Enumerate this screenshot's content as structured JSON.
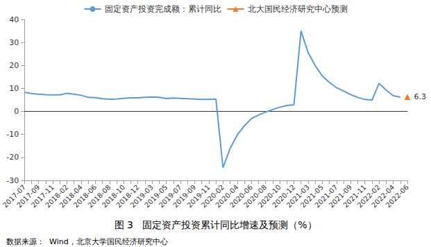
{
  "chart_data": {
    "type": "line",
    "title": "图 3   固定资产投资累计同比增速及预测（%）",
    "source": "数据来源：  Wind，北京大学国民经济研究中心",
    "categories": [
      "2017-07",
      null,
      "2017-09",
      null,
      "2017-11",
      null,
      "2018-02",
      null,
      "2018-04",
      null,
      "2018-06",
      null,
      "2018-08",
      null,
      "2018-10",
      null,
      "2018-12",
      null,
      "2019-03",
      null,
      "2019-05",
      null,
      "2019-07",
      null,
      "2019-09",
      null,
      "2019-11",
      null,
      "2020-02",
      null,
      "2020-04",
      null,
      "2020-06",
      null,
      "2020-08",
      null,
      "2020-10",
      null,
      "2020-12",
      null,
      "2021-03",
      null,
      "2021-05",
      null,
      "2021-07",
      null,
      "2021-09",
      null,
      "2021-11",
      null,
      "2022-02",
      null,
      "2022-04",
      null,
      "2022-06"
    ],
    "series": [
      {
        "name": "固定资产投资完成额：累计同比",
        "color": "#5b9bd5",
        "marker": "none",
        "line_style": "solid",
        "values": [
          8.3,
          7.8,
          7.5,
          7.3,
          7.2,
          7.2,
          7.9,
          7.5,
          7.0,
          6.1,
          6.0,
          5.5,
          5.3,
          5.4,
          5.7,
          5.9,
          5.9,
          6.1,
          6.3,
          6.1,
          5.6,
          5.8,
          5.7,
          5.5,
          5.4,
          5.2,
          5.2,
          5.4,
          -24.5,
          -16.1,
          -10.3,
          -6.3,
          -3.1,
          -1.6,
          -0.3,
          0.8,
          1.8,
          2.6,
          2.9,
          35.0,
          25.6,
          19.9,
          15.4,
          12.6,
          10.3,
          8.9,
          7.3,
          6.1,
          5.2,
          4.9,
          12.2,
          9.3,
          6.8,
          6.2,
          null
        ]
      },
      {
        "name": "北大国民经济研究中心预测",
        "color": "#ed7d31",
        "marker": "triangle",
        "line_style": "solid",
        "data_labels": true,
        "values": [
          null,
          null,
          null,
          null,
          null,
          null,
          null,
          null,
          null,
          null,
          null,
          null,
          null,
          null,
          null,
          null,
          null,
          null,
          null,
          null,
          null,
          null,
          null,
          null,
          null,
          null,
          null,
          null,
          null,
          null,
          null,
          null,
          null,
          null,
          null,
          null,
          null,
          null,
          null,
          null,
          null,
          null,
          null,
          null,
          null,
          null,
          null,
          null,
          null,
          null,
          null,
          null,
          null,
          null,
          6.3
        ]
      }
    ],
    "ylim": [
      -30,
      40
    ],
    "yticks": [
      -30,
      -20,
      -10,
      0,
      10,
      20,
      30,
      40
    ],
    "grid": false,
    "legend": "top"
  }
}
